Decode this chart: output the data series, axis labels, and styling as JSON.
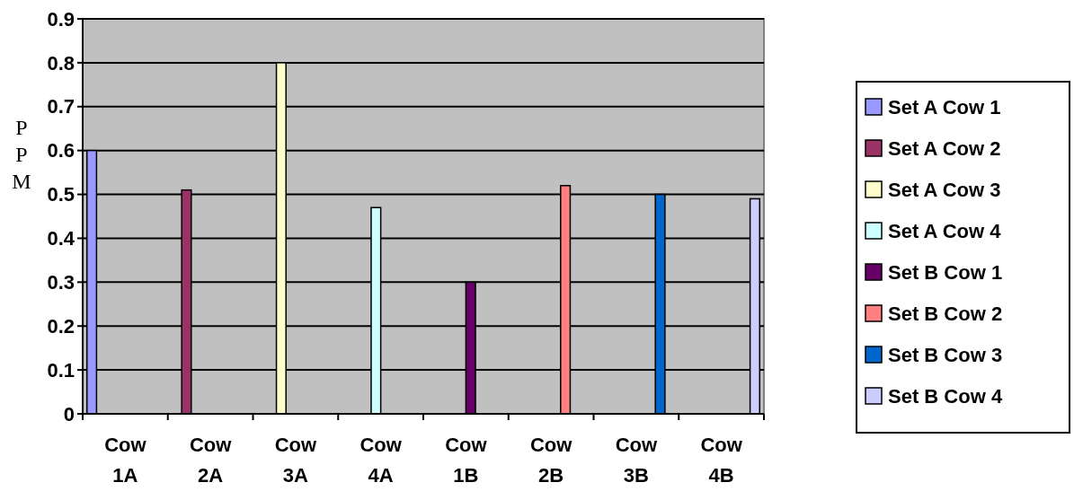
{
  "chart_data": {
    "type": "bar",
    "ylabel": "PPM",
    "categories": [
      "Cow 1A",
      "Cow 2A",
      "Cow 3A",
      "Cow 4A",
      "Cow 1B",
      "Cow 2B",
      "Cow 3B",
      "Cow 4B"
    ],
    "series": [
      {
        "name": "Set A Cow 1",
        "color": "#9999ff",
        "values": [
          0.6,
          null,
          null,
          null,
          null,
          null,
          null,
          null
        ]
      },
      {
        "name": "Set A Cow 2",
        "color": "#993366",
        "values": [
          null,
          0.51,
          null,
          null,
          null,
          null,
          null,
          null
        ]
      },
      {
        "name": "Set A Cow 3",
        "color": "#ffffcc",
        "values": [
          null,
          null,
          0.8,
          null,
          null,
          null,
          null,
          null
        ]
      },
      {
        "name": "Set A Cow 4",
        "color": "#ccffff",
        "values": [
          null,
          null,
          null,
          0.47,
          null,
          null,
          null,
          null
        ]
      },
      {
        "name": "Set B Cow 1",
        "color": "#660066",
        "values": [
          null,
          null,
          null,
          null,
          0.3,
          null,
          null,
          null
        ]
      },
      {
        "name": "Set B Cow 2",
        "color": "#ff8080",
        "values": [
          null,
          null,
          null,
          null,
          null,
          0.52,
          null,
          null
        ]
      },
      {
        "name": "Set B Cow 3",
        "color": "#0066cc",
        "values": [
          null,
          null,
          null,
          null,
          null,
          null,
          0.5,
          null
        ]
      },
      {
        "name": "Set B Cow 4",
        "color": "#ccccff",
        "values": [
          null,
          null,
          null,
          null,
          null,
          null,
          null,
          0.49
        ]
      }
    ],
    "ylim": [
      0,
      0.9
    ],
    "yticks": [
      0,
      0.1,
      0.2,
      0.3,
      0.4,
      0.5,
      0.6,
      0.7,
      0.8,
      0.9
    ],
    "grid": "y",
    "legend": "right"
  }
}
